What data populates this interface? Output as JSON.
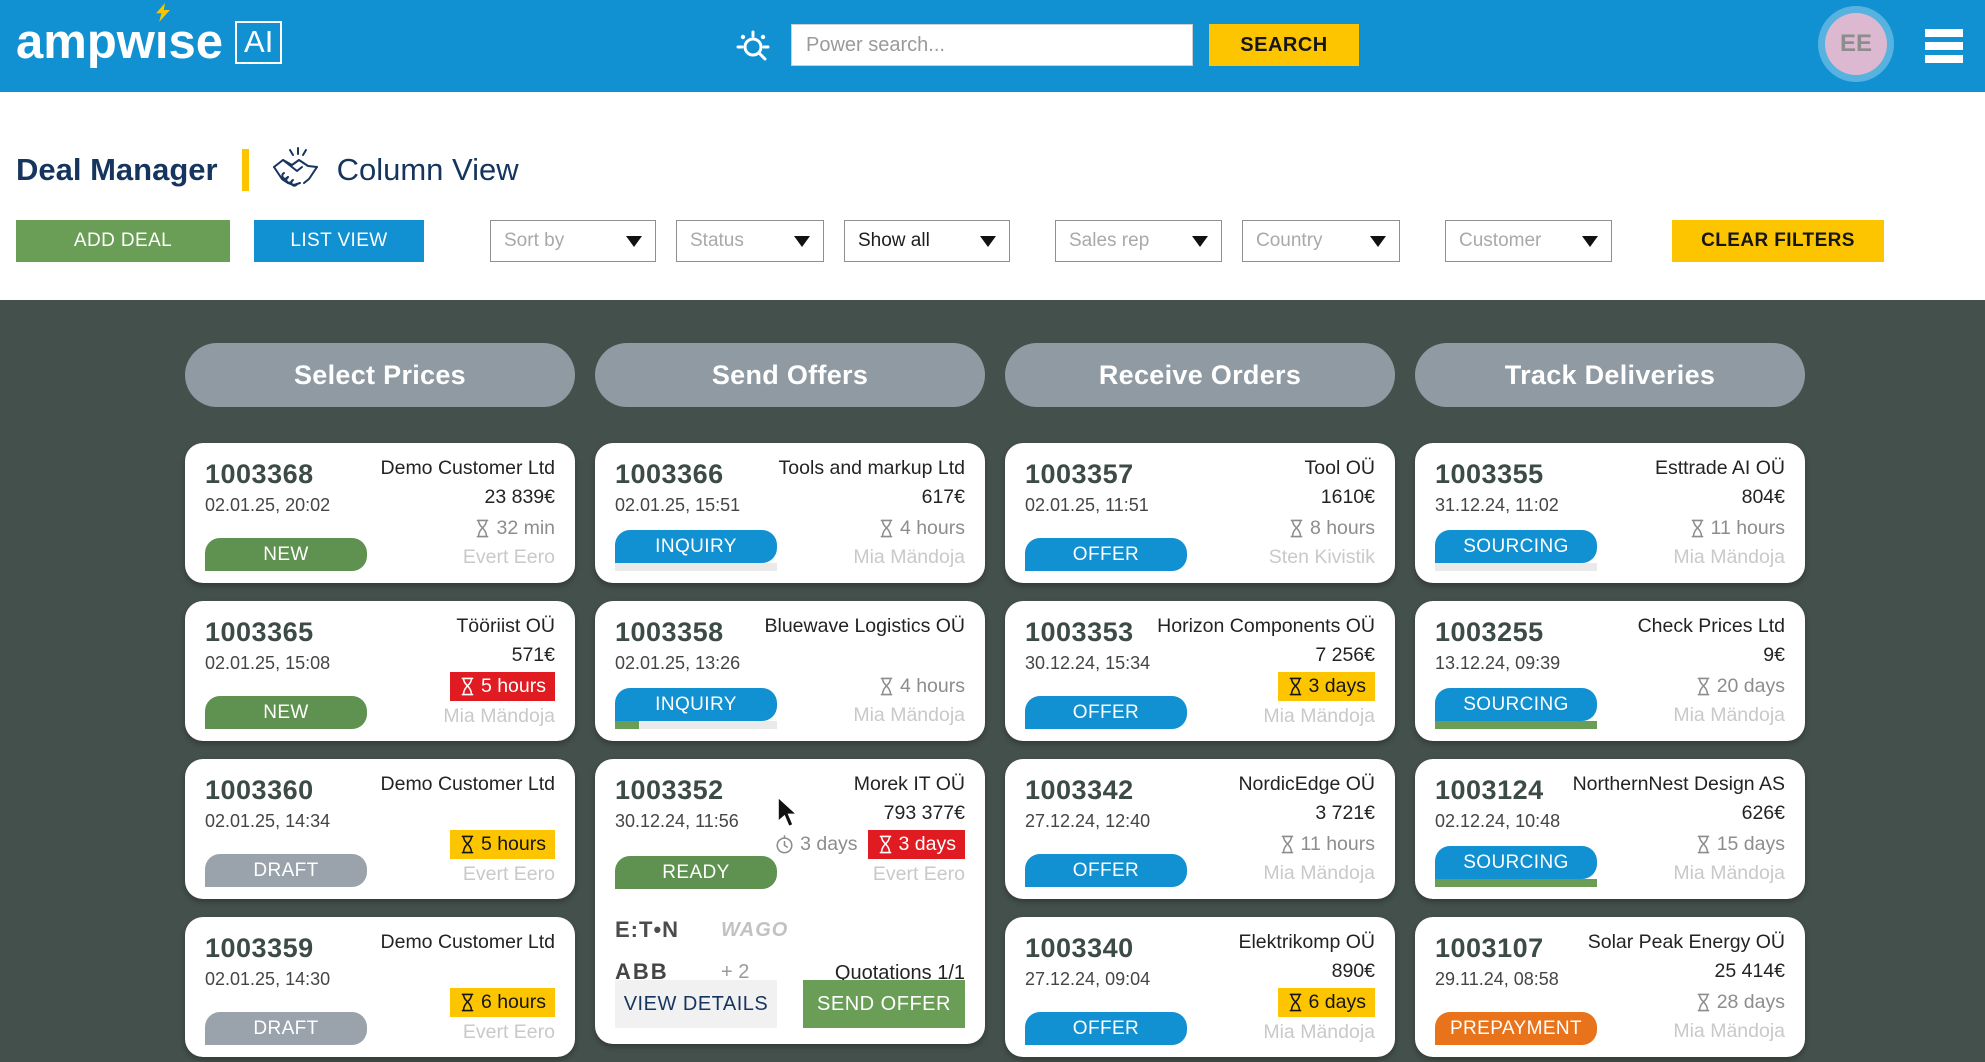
{
  "colors": {
    "header_blue": "#1191d2",
    "accent_yellow": "#fcc500",
    "green": "#6a9e56",
    "badge_green": "#5f9150",
    "grey_badge": "#9aa2ab",
    "orange": "#e8731a",
    "red": "#e01b22",
    "navy": "#16355e",
    "board_bg": "#44504b",
    "pill_grey": "#8f9aa2"
  },
  "header": {
    "logo_word_left": "ampw",
    "logo_word_i": "ı",
    "logo_word_right": "se",
    "logo_badge": "AI",
    "search_placeholder": "Power search...",
    "search_button": "SEARCH",
    "avatar_initials": "EE"
  },
  "toolbar": {
    "page_title": "Deal Manager",
    "view_title": "Column View",
    "add_deal": "ADD DEAL",
    "list_view": "LIST VIEW",
    "clear_filters": "CLEAR FILTERS",
    "filters": [
      {
        "label": "Sort by",
        "selected": false
      },
      {
        "label": "Status",
        "selected": false
      },
      {
        "label": "Show all",
        "selected": true
      },
      {
        "label": "Sales rep",
        "selected": false
      },
      {
        "label": "Country",
        "selected": false
      },
      {
        "label": "Customer",
        "selected": false
      }
    ]
  },
  "board": {
    "columns": [
      {
        "title": "Select Prices",
        "cards": [
          {
            "id": "1003368",
            "datetime": "02.01.25, 20:02",
            "customer": "Demo Customer Ltd",
            "price": "23 839€",
            "time": {
              "style": "plain",
              "text": "32 min"
            },
            "rep": "Evert Eero",
            "status": {
              "label": "NEW",
              "type": "green"
            },
            "progress": null
          },
          {
            "id": "1003365",
            "datetime": "02.01.25, 15:08",
            "customer": "Tööriist OÜ",
            "price": "571€",
            "time": {
              "style": "red",
              "text": "5 hours"
            },
            "rep": "Mia Mändoja",
            "status": {
              "label": "NEW",
              "type": "green"
            },
            "progress": null
          },
          {
            "id": "1003360",
            "datetime": "02.01.25, 14:34",
            "customer": "Demo Customer Ltd",
            "price": "",
            "time": {
              "style": "yellow",
              "text": "5 hours"
            },
            "rep": "Evert Eero",
            "status": {
              "label": "DRAFT",
              "type": "grey"
            },
            "progress": null
          },
          {
            "id": "1003359",
            "datetime": "02.01.25, 14:30",
            "customer": "Demo Customer Ltd",
            "price": "",
            "time": {
              "style": "yellow",
              "text": "6 hours"
            },
            "rep": "Evert Eero",
            "status": {
              "label": "DRAFT",
              "type": "grey"
            },
            "progress": null
          }
        ]
      },
      {
        "title": "Send Offers",
        "cards": [
          {
            "id": "1003366",
            "datetime": "02.01.25, 15:51",
            "customer": "Tools and markup Ltd",
            "price": "617€",
            "time": {
              "style": "plain",
              "text": "4 hours"
            },
            "rep": "Mia Mändoja",
            "status": {
              "label": "INQUIRY",
              "type": "blue"
            },
            "progress": 0
          },
          {
            "id": "1003358",
            "datetime": "02.01.25, 13:26",
            "customer": "Bluewave Logistics OÜ",
            "price": "",
            "time": {
              "style": "plain",
              "text": "4 hours"
            },
            "rep": "Mia Mändoja",
            "status": {
              "label": "INQUIRY",
              "type": "blue"
            },
            "progress": 15
          },
          {
            "id": "1003352",
            "datetime": "30.12.24, 11:56",
            "customer": "Morek IT OÜ",
            "price": "793 377€",
            "pre_time": {
              "text": "3 days"
            },
            "time": {
              "style": "red",
              "text": "3 days"
            },
            "rep": "Evert Eero",
            "status": {
              "label": "READY",
              "type": "green"
            },
            "progress": null,
            "big": true,
            "logos": [
              {
                "name": "eaton",
                "text": "E:T•N"
              },
              {
                "name": "wago",
                "text": "WAGO"
              },
              {
                "name": "abb",
                "text": "ABB"
              }
            ],
            "logos_more": "+ 2",
            "quotations": "Quotations 1/1",
            "actions": [
              {
                "label": "VIEW DETAILS",
                "kind": "secondary"
              },
              {
                "label": "SEND OFFER",
                "kind": "primary"
              }
            ]
          }
        ]
      },
      {
        "title": "Receive Orders",
        "cards": [
          {
            "id": "1003357",
            "datetime": "02.01.25, 11:51",
            "customer": "Tool OÜ",
            "price": "1610€",
            "time": {
              "style": "plain",
              "text": "8 hours"
            },
            "rep": "Sten Kivistik",
            "status": {
              "label": "OFFER",
              "type": "blue"
            },
            "progress": null
          },
          {
            "id": "1003353",
            "datetime": "30.12.24, 15:34",
            "customer": "Horizon Components OÜ",
            "price": "7 256€",
            "time": {
              "style": "yellow",
              "text": "3 days"
            },
            "rep": "Mia Mändoja",
            "status": {
              "label": "OFFER",
              "type": "blue"
            },
            "progress": null
          },
          {
            "id": "1003342",
            "datetime": "27.12.24, 12:40",
            "customer": "NordicEdge OÜ",
            "price": "3 721€",
            "time": {
              "style": "plain",
              "text": "11 hours"
            },
            "rep": "Mia Mändoja",
            "status": {
              "label": "OFFER",
              "type": "blue"
            },
            "progress": null
          },
          {
            "id": "1003340",
            "datetime": "27.12.24, 09:04",
            "customer": "Elektrikomp OÜ",
            "price": "890€",
            "time": {
              "style": "yellow",
              "text": "6 days"
            },
            "rep": "Mia Mändoja",
            "status": {
              "label": "OFFER",
              "type": "blue"
            },
            "progress": null
          }
        ]
      },
      {
        "title": "Track Deliveries",
        "cards": [
          {
            "id": "1003355",
            "datetime": "31.12.24, 11:02",
            "customer": "Esttrade AI OÜ",
            "price": "804€",
            "time": {
              "style": "plain",
              "text": "11 hours"
            },
            "rep": "Mia Mändoja",
            "status": {
              "label": "SOURCING",
              "type": "blue"
            },
            "progress": 0
          },
          {
            "id": "1003255",
            "datetime": "13.12.24, 09:39",
            "customer": "Check Prices Ltd",
            "price": "9€",
            "time": {
              "style": "plain",
              "text": "20 days"
            },
            "rep": "Mia Mändoja",
            "status": {
              "label": "SOURCING",
              "type": "blue"
            },
            "progress": 100
          },
          {
            "id": "1003124",
            "datetime": "02.12.24, 10:48",
            "customer": "NorthernNest Design AS",
            "price": "626€",
            "time": {
              "style": "plain",
              "text": "15 days"
            },
            "rep": "Mia Mändoja",
            "status": {
              "label": "SOURCING",
              "type": "blue"
            },
            "progress": 100
          },
          {
            "id": "1003107",
            "datetime": "29.11.24, 08:58",
            "customer": "Solar Peak Energy OÜ",
            "price": "25 414€",
            "time": {
              "style": "plain",
              "text": "28 days"
            },
            "rep": "Mia Mändoja",
            "status": {
              "label": "PREPAYMENT",
              "type": "orange"
            },
            "progress": null
          }
        ]
      }
    ]
  }
}
